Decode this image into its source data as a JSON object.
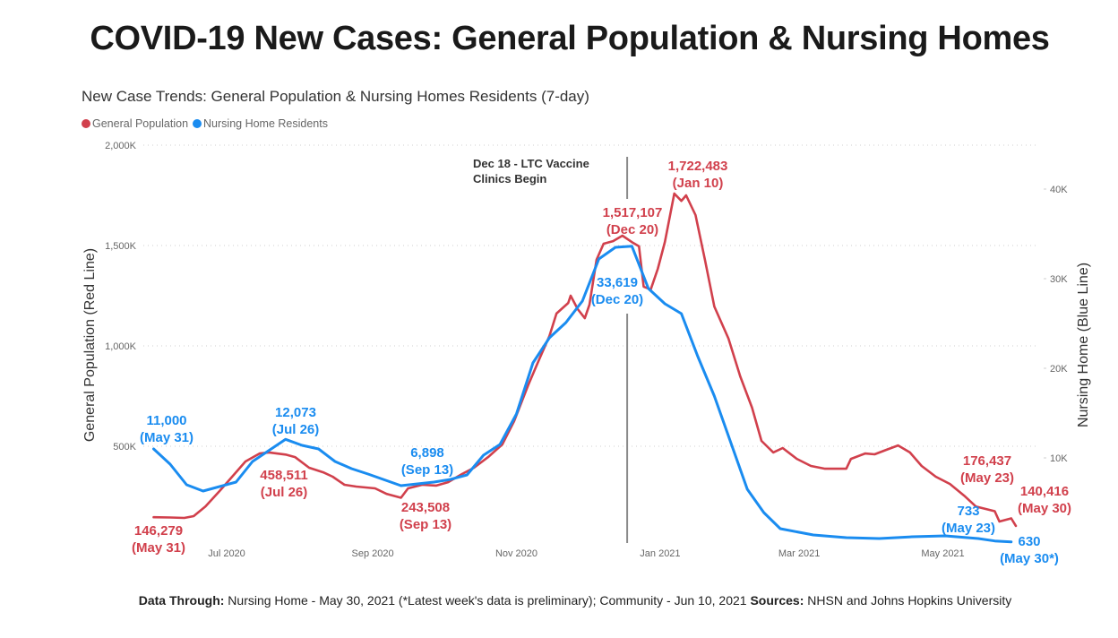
{
  "title": "COVID-19 New Cases: General Population & Nursing Homes",
  "footer": {
    "label1": "Data Through:",
    "text1": " Nursing Home - May 30, 2021 (*Latest week's data is preliminary); Community -  Jun 10, 2021 ",
    "label2": "Sources:",
    "text2": " NHSN and Johns Hopkins University"
  },
  "chart_data": {
    "type": "line",
    "title": "New Case Trends: General Population & Nursing Homes Residents (7-day)",
    "legend_position": "top-left",
    "ylabel_left": "General Population (Red Line)",
    "ylabel_right": "Nursing Home (Blue Line)",
    "ylim_left": [
      0,
      2000000
    ],
    "ylim_right": [
      0,
      44800
    ],
    "yticks_left": [
      {
        "value": 500000,
        "label": "500K"
      },
      {
        "value": 1000000,
        "label": "1,000K"
      },
      {
        "value": 1500000,
        "label": "1,500K"
      },
      {
        "value": 2000000,
        "label": "2,000K"
      }
    ],
    "yticks_right": [
      {
        "value": 10000,
        "label": "10K"
      },
      {
        "value": 20000,
        "label": "20K"
      },
      {
        "value": 30000,
        "label": "30K"
      },
      {
        "value": 40000,
        "label": "40K"
      }
    ],
    "xticks": [
      {
        "date": "2020-07-01",
        "label": "Jul 2020"
      },
      {
        "date": "2020-09-01",
        "label": "Sep 2020"
      },
      {
        "date": "2020-11-01",
        "label": "Nov 2020"
      },
      {
        "date": "2021-01-01",
        "label": "Jan 2021"
      },
      {
        "date": "2021-03-01",
        "label": "Mar 2021"
      },
      {
        "date": "2021-05-01",
        "label": "May 2021"
      }
    ],
    "xlim": [
      "2020-05-10",
      "2021-06-10"
    ],
    "grid": true,
    "series": [
      {
        "name": "General Population",
        "color": "#d1404c",
        "axis": "left",
        "points": [
          [
            "2020-05-31",
            146279
          ],
          [
            "2020-06-07",
            145000
          ],
          [
            "2020-06-13",
            143000
          ],
          [
            "2020-06-17",
            152000
          ],
          [
            "2020-06-22",
            200000
          ],
          [
            "2020-06-28",
            277000
          ],
          [
            "2020-07-04",
            357000
          ],
          [
            "2020-07-09",
            424000
          ],
          [
            "2020-07-15",
            464000
          ],
          [
            "2020-07-19",
            469000
          ],
          [
            "2020-07-26",
            458511
          ],
          [
            "2020-07-30",
            446000
          ],
          [
            "2020-08-05",
            393000
          ],
          [
            "2020-08-11",
            370000
          ],
          [
            "2020-08-15",
            348000
          ],
          [
            "2020-08-20",
            308000
          ],
          [
            "2020-08-25",
            299000
          ],
          [
            "2020-09-02",
            290000
          ],
          [
            "2020-09-07",
            262000
          ],
          [
            "2020-09-13",
            243508
          ],
          [
            "2020-09-16",
            290000
          ],
          [
            "2020-09-22",
            308000
          ],
          [
            "2020-09-28",
            304000
          ],
          [
            "2020-10-03",
            321000
          ],
          [
            "2020-10-09",
            362000
          ],
          [
            "2020-10-14",
            393000
          ],
          [
            "2020-10-20",
            446000
          ],
          [
            "2020-10-26",
            509000
          ],
          [
            "2020-10-31",
            625000
          ],
          [
            "2020-11-06",
            804000
          ],
          [
            "2020-11-10",
            915000
          ],
          [
            "2020-11-15",
            1049000
          ],
          [
            "2020-11-18",
            1161000
          ],
          [
            "2020-11-23",
            1214000
          ],
          [
            "2020-11-24",
            1250000
          ],
          [
            "2020-11-27",
            1183000
          ],
          [
            "2020-11-30",
            1138000
          ],
          [
            "2020-12-02",
            1205000
          ],
          [
            "2020-12-05",
            1429000
          ],
          [
            "2020-12-08",
            1509000
          ],
          [
            "2020-12-12",
            1522000
          ],
          [
            "2020-12-16",
            1549000
          ],
          [
            "2020-12-20",
            1517107
          ],
          [
            "2020-12-23",
            1496000
          ],
          [
            "2020-12-25",
            1295000
          ],
          [
            "2020-12-28",
            1281000
          ],
          [
            "2020-12-31",
            1384000
          ],
          [
            "2021-01-03",
            1518000
          ],
          [
            "2021-01-07",
            1759000
          ],
          [
            "2021-01-10",
            1722483
          ],
          [
            "2021-01-12",
            1750000
          ],
          [
            "2021-01-16",
            1652000
          ],
          [
            "2021-01-20",
            1429000
          ],
          [
            "2021-01-24",
            1196000
          ],
          [
            "2021-01-30",
            1036000
          ],
          [
            "2021-02-04",
            848000
          ],
          [
            "2021-02-09",
            692000
          ],
          [
            "2021-02-13",
            527000
          ],
          [
            "2021-02-18",
            469000
          ],
          [
            "2021-02-22",
            491000
          ],
          [
            "2021-02-28",
            437000
          ],
          [
            "2021-03-06",
            402000
          ],
          [
            "2021-03-12",
            388000
          ],
          [
            "2021-03-21",
            388000
          ],
          [
            "2021-03-23",
            437000
          ],
          [
            "2021-03-29",
            464000
          ],
          [
            "2021-04-02",
            460000
          ],
          [
            "2021-04-07",
            482000
          ],
          [
            "2021-04-12",
            504000
          ],
          [
            "2021-04-17",
            469000
          ],
          [
            "2021-04-22",
            402000
          ],
          [
            "2021-04-28",
            348000
          ],
          [
            "2021-05-04",
            312000
          ],
          [
            "2021-05-10",
            254000
          ],
          [
            "2021-05-15",
            200000
          ],
          [
            "2021-05-23",
            176437
          ],
          [
            "2021-05-25",
            125000
          ],
          [
            "2021-05-30",
            140416
          ],
          [
            "2021-06-01",
            103000
          ]
        ]
      },
      {
        "name": "Nursing Home Residents",
        "color": "#1a8cf0",
        "axis": "right",
        "points": [
          [
            "2020-05-31",
            11000
          ],
          [
            "2020-06-07",
            9300
          ],
          [
            "2020-06-14",
            7000
          ],
          [
            "2020-06-21",
            6300
          ],
          [
            "2020-07-05",
            7300
          ],
          [
            "2020-07-12",
            9600
          ],
          [
            "2020-07-26",
            12073
          ],
          [
            "2020-08-02",
            11400
          ],
          [
            "2020-08-09",
            11000
          ],
          [
            "2020-08-16",
            9600
          ],
          [
            "2020-08-23",
            8800
          ],
          [
            "2020-08-30",
            8200
          ],
          [
            "2020-09-13",
            6898
          ],
          [
            "2020-09-27",
            7300
          ],
          [
            "2020-10-04",
            7600
          ],
          [
            "2020-10-11",
            8100
          ],
          [
            "2020-10-18",
            10300
          ],
          [
            "2020-10-25",
            11500
          ],
          [
            "2020-11-01",
            14900
          ],
          [
            "2020-11-08",
            20600
          ],
          [
            "2020-11-15",
            23400
          ],
          [
            "2020-11-22",
            25100
          ],
          [
            "2020-11-29",
            27500
          ],
          [
            "2020-12-06",
            32200
          ],
          [
            "2020-12-13",
            33500
          ],
          [
            "2020-12-20",
            33619
          ],
          [
            "2020-12-27",
            28900
          ],
          [
            "2021-01-03",
            27200
          ],
          [
            "2021-01-10",
            26100
          ],
          [
            "2021-01-17",
            21300
          ],
          [
            "2021-01-24",
            16900
          ],
          [
            "2021-02-07",
            6500
          ],
          [
            "2021-02-14",
            3900
          ],
          [
            "2021-02-21",
            2100
          ],
          [
            "2021-03-07",
            1400
          ],
          [
            "2021-03-21",
            1100
          ],
          [
            "2021-04-04",
            1000
          ],
          [
            "2021-04-18",
            1200
          ],
          [
            "2021-05-02",
            1300
          ],
          [
            "2021-05-16",
            1000
          ],
          [
            "2021-05-23",
            733
          ],
          [
            "2021-05-30",
            630
          ]
        ]
      }
    ],
    "annotations": [
      {
        "series": "General Population",
        "lines": [
          "146,279",
          "(May 31)"
        ]
      },
      {
        "series": "General Population",
        "lines": [
          "458,511",
          "(Jul 26)"
        ]
      },
      {
        "series": "General Population",
        "lines": [
          "243,508",
          "(Sep 13)"
        ]
      },
      {
        "series": "General Population",
        "lines": [
          "1,517,107",
          "(Dec 20)"
        ]
      },
      {
        "series": "General Population",
        "lines": [
          "1,722,483",
          "(Jan 10)"
        ]
      },
      {
        "series": "General Population",
        "lines": [
          "176,437",
          "(May 23)"
        ]
      },
      {
        "series": "General Population",
        "lines": [
          "140,416",
          "(May 30)"
        ]
      },
      {
        "series": "Nursing Home Residents",
        "lines": [
          "11,000",
          "(May 31)"
        ]
      },
      {
        "series": "Nursing Home Residents",
        "lines": [
          "12,073",
          "(Jul 26)"
        ]
      },
      {
        "series": "Nursing Home Residents",
        "lines": [
          "6,898",
          "(Sep 13)"
        ]
      },
      {
        "series": "Nursing Home Residents",
        "lines": [
          "33,619",
          "(Dec 20)"
        ]
      },
      {
        "series": "Nursing Home Residents",
        "lines": [
          "733",
          "(May 23)"
        ]
      },
      {
        "series": "Nursing Home Residents",
        "lines": [
          "630",
          "(May 30*)"
        ]
      }
    ],
    "event_marker": {
      "date": "2020-12-18",
      "lines": [
        "Dec 18 - LTC Vaccine",
        "Clinics Begin"
      ]
    }
  }
}
